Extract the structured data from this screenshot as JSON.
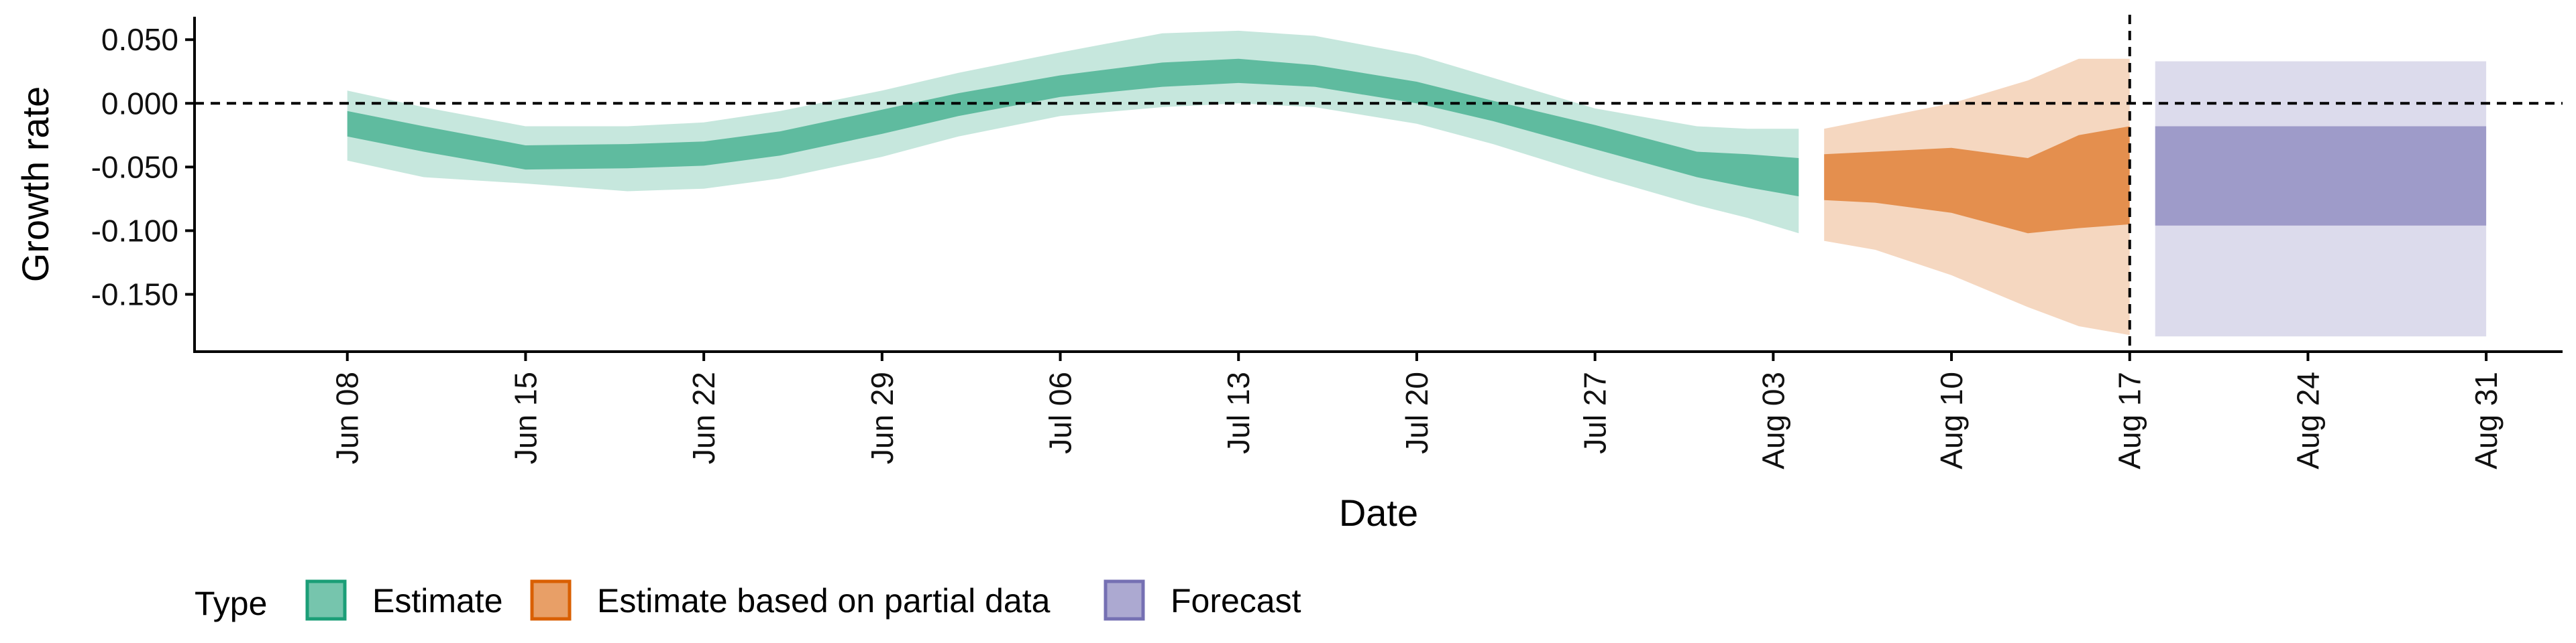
{
  "chart_data": {
    "type": "area",
    "title": "",
    "xlabel": "Date",
    "ylabel": "Growth rate",
    "ylim": [
      -0.195,
      0.068
    ],
    "xlim": [
      "2023-06-02",
      "2023-09-03"
    ],
    "yticks": [
      0.05,
      0.0,
      -0.05,
      -0.1,
      -0.15
    ],
    "ytick_labels": [
      "0.050",
      "0.000",
      "-0.050",
      "-0.100",
      "-0.150"
    ],
    "xticks": [
      "2023-06-08",
      "2023-06-15",
      "2023-06-22",
      "2023-06-29",
      "2023-07-06",
      "2023-07-13",
      "2023-07-20",
      "2023-07-27",
      "2023-08-03",
      "2023-08-10",
      "2023-08-17",
      "2023-08-24",
      "2023-08-31"
    ],
    "xtick_labels": [
      "Jun 08",
      "Jun 15",
      "Jun 22",
      "Jun 29",
      "Jul 06",
      "Jul 13",
      "Jul 20",
      "Jul 27",
      "Aug 03",
      "Aug 10",
      "Aug 17",
      "Aug 24",
      "Aug 31"
    ],
    "reference_lines": {
      "hline_y": 0.0,
      "vline_x": "2023-08-17",
      "style": "dashed"
    },
    "legend": {
      "title": "Type",
      "placement": "bottom-left",
      "items": [
        {
          "label": "Estimate",
          "color": "#1B9E77"
        },
        {
          "label": "Estimate based on partial data",
          "color": "#D95F02"
        },
        {
          "label": "Forecast",
          "color": "#7570B3"
        }
      ]
    },
    "series": [
      {
        "name": "Estimate",
        "color": "#1B9E77",
        "points": [
          {
            "date": "2023-06-08",
            "lo90": -0.045,
            "lo50": -0.026,
            "hi50": -0.006,
            "hi90": 0.01
          },
          {
            "date": "2023-06-11",
            "lo90": -0.058,
            "lo50": -0.038,
            "hi50": -0.018,
            "hi90": -0.003
          },
          {
            "date": "2023-06-15",
            "lo90": -0.063,
            "lo50": -0.052,
            "hi50": -0.033,
            "hi90": -0.018
          },
          {
            "date": "2023-06-19",
            "lo90": -0.069,
            "lo50": -0.051,
            "hi50": -0.032,
            "hi90": -0.018
          },
          {
            "date": "2023-06-22",
            "lo90": -0.067,
            "lo50": -0.049,
            "hi50": -0.03,
            "hi90": -0.015
          },
          {
            "date": "2023-06-25",
            "lo90": -0.059,
            "lo50": -0.041,
            "hi50": -0.022,
            "hi90": -0.006
          },
          {
            "date": "2023-06-29",
            "lo90": -0.042,
            "lo50": -0.024,
            "hi50": -0.005,
            "hi90": 0.01
          },
          {
            "date": "2023-07-02",
            "lo90": -0.026,
            "lo50": -0.01,
            "hi50": 0.008,
            "hi90": 0.024
          },
          {
            "date": "2023-07-06",
            "lo90": -0.01,
            "lo50": 0.005,
            "hi50": 0.022,
            "hi90": 0.04
          },
          {
            "date": "2023-07-10",
            "lo90": -0.003,
            "lo50": 0.013,
            "hi50": 0.032,
            "hi90": 0.055
          },
          {
            "date": "2023-07-13",
            "lo90": 0.0,
            "lo50": 0.016,
            "hi50": 0.035,
            "hi90": 0.057
          },
          {
            "date": "2023-07-16",
            "lo90": -0.003,
            "lo50": 0.013,
            "hi50": 0.03,
            "hi90": 0.053
          },
          {
            "date": "2023-07-20",
            "lo90": -0.016,
            "lo50": 0.0,
            "hi50": 0.017,
            "hi90": 0.038
          },
          {
            "date": "2023-07-23",
            "lo90": -0.032,
            "lo50": -0.014,
            "hi50": 0.002,
            "hi90": 0.02
          },
          {
            "date": "2023-07-27",
            "lo90": -0.057,
            "lo50": -0.036,
            "hi50": -0.017,
            "hi90": -0.004
          },
          {
            "date": "2023-07-31",
            "lo90": -0.08,
            "lo50": -0.058,
            "hi50": -0.038,
            "hi90": -0.018
          },
          {
            "date": "2023-08-02",
            "lo90": -0.09,
            "lo50": -0.066,
            "hi50": -0.04,
            "hi90": -0.02
          },
          {
            "date": "2023-08-04",
            "lo90": -0.102,
            "lo50": -0.073,
            "hi50": -0.043,
            "hi90": -0.02
          }
        ]
      },
      {
        "name": "Estimate based on partial data",
        "color": "#D95F02",
        "points": [
          {
            "date": "2023-08-05",
            "lo90": -0.108,
            "lo50": -0.076,
            "hi50": -0.04,
            "hi90": -0.02
          },
          {
            "date": "2023-08-07",
            "lo90": -0.115,
            "lo50": -0.078,
            "hi50": -0.038,
            "hi90": -0.012
          },
          {
            "date": "2023-08-10",
            "lo90": -0.135,
            "lo50": -0.086,
            "hi50": -0.035,
            "hi90": 0.0
          },
          {
            "date": "2023-08-13",
            "lo90": -0.16,
            "lo50": -0.102,
            "hi50": -0.043,
            "hi90": 0.018
          },
          {
            "date": "2023-08-15",
            "lo90": -0.175,
            "lo50": -0.098,
            "hi50": -0.025,
            "hi90": 0.035
          },
          {
            "date": "2023-08-17",
            "lo90": -0.182,
            "lo50": -0.095,
            "hi50": -0.018,
            "hi90": 0.035
          }
        ]
      },
      {
        "name": "Forecast",
        "color": "#7570B3",
        "points": [
          {
            "date": "2023-08-18",
            "lo90": -0.183,
            "lo50": -0.096,
            "hi50": -0.018,
            "hi90": 0.033
          },
          {
            "date": "2023-08-31",
            "lo90": -0.183,
            "lo50": -0.096,
            "hi50": -0.018,
            "hi90": 0.033
          }
        ]
      }
    ]
  }
}
